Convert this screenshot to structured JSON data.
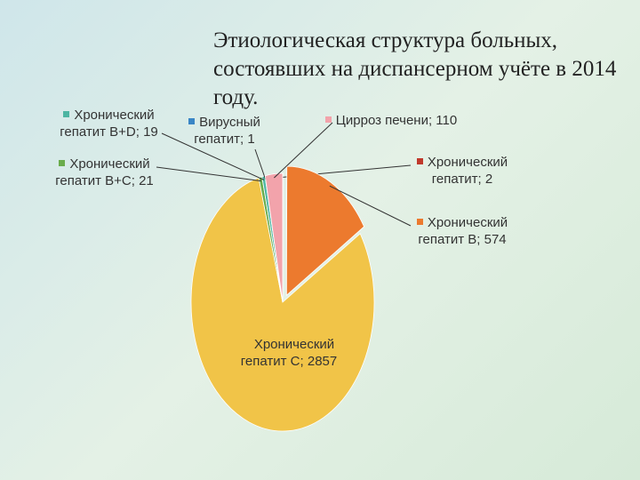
{
  "chart_data": {
    "type": "pie",
    "title": "Этиологическая структура больных, состоявших на диспансерном учёте в 2014 году.",
    "categories": [
      "Хронический гепатит",
      "Хронический гепатит B",
      "Хронический гепатит C",
      "Хронический гепатит B+C",
      "Хронический гепатит B+D",
      "Вирусный гепатит",
      "Цирроз печени"
    ],
    "values": [
      2,
      574,
      2857,
      21,
      19,
      1,
      110
    ],
    "colors": [
      "#c0392b",
      "#ec7a2e",
      "#f1c448",
      "#6aac4c",
      "#4cb5a2",
      "#3a86c6",
      "#f2a3ab"
    ],
    "separator": ";",
    "exploded": [
      1
    ]
  }
}
